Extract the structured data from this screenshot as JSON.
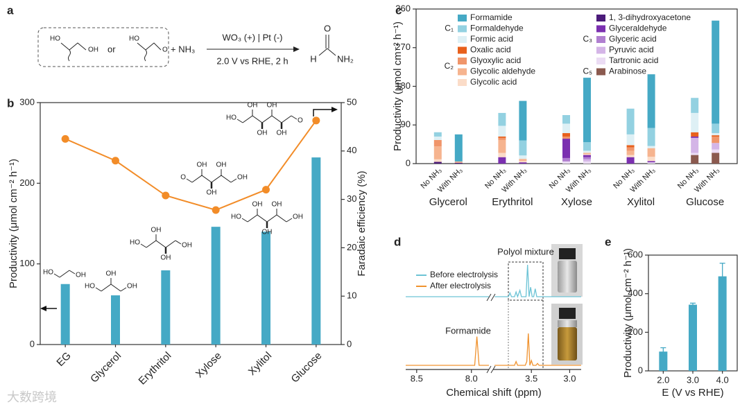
{
  "panel_labels": [
    "a",
    "b",
    "c",
    "d",
    "e"
  ],
  "scheme": {
    "reactant_1": [
      "HO",
      "OH"
    ],
    "or": "or",
    "reactant_2": [
      "HO",
      "O"
    ],
    "plus": "+ NH₃",
    "condition_top": "WO₃ (+) | Pt (-)",
    "condition_bottom": "2.0 V vs RHE, 2 h",
    "product": [
      "O",
      "H",
      "NH₂"
    ]
  },
  "watermark": "大数跨境",
  "chart_data": [
    {
      "type": "combo",
      "categories": [
        "EG",
        "Glycerol",
        "Erythritol",
        "Xylose",
        "Xylitol",
        "Glucose"
      ],
      "ylabel": "Productivity (μmol cm⁻² h⁻¹)",
      "y2label": "Faradaic efficiency (%)",
      "ylim": [
        0,
        300
      ],
      "yticks": [
        0,
        100,
        200,
        300
      ],
      "y2lim": [
        0,
        50
      ],
      "y2ticks": [
        0,
        10,
        20,
        30,
        40,
        50
      ],
      "series": [
        {
          "type": "bar",
          "color": "#45a9c5",
          "values": [
            75,
            61,
            92,
            146,
            140,
            232
          ]
        },
        {
          "type": "line",
          "axis": "y2",
          "color": "#f28c28",
          "values": [
            42.5,
            38,
            30.8,
            27.8,
            32,
            46.3
          ]
        }
      ],
      "structures": [
        {
          "labels": [
            "HO",
            "OH"
          ]
        },
        {
          "labels": [
            "HO",
            "OH",
            "OH"
          ]
        },
        {
          "labels": [
            "HO",
            "OH",
            "OH",
            "OH"
          ]
        },
        {
          "labels": [
            "O",
            "OH",
            "OH",
            "OH",
            "OH"
          ]
        },
        {
          "labels": [
            "HO",
            "OH",
            "OH",
            "OH",
            "OH"
          ]
        },
        {
          "labels": [
            "HO",
            "OH",
            "OH",
            "OH",
            "OH",
            "O"
          ]
        }
      ]
    },
    {
      "type": "stacked_bar",
      "categories": [
        "No NH₃",
        "With NH₃",
        "No NH₃",
        "With NH₃",
        "No NH₃",
        "With NH₃",
        "No NH₃",
        "With NH₃",
        "No NH₃",
        "With NH₃"
      ],
      "groups": [
        "Glycerol",
        "Erythritol",
        "Xylose",
        "Xylitol",
        "Glucose"
      ],
      "ylabel": "Productivity (μmol cm⁻² h⁻¹)",
      "ylim": [
        0,
        360
      ],
      "yticks": [
        0,
        90,
        180,
        270,
        360
      ],
      "legend_groups": [
        {
          "label": "C₁",
          "series": [
            {
              "name": "Formamide",
              "color": "#45a9c5",
              "values": [
                0,
                63,
                0,
                92,
                0,
                150,
                0,
                125,
                0,
                240
              ]
            },
            {
              "name": "Formaldehyde",
              "color": "#93d1e1",
              "values": [
                10,
                0,
                30,
                35,
                20,
                20,
                60,
                42,
                35,
                22
              ]
            },
            {
              "name": "Formic acid",
              "color": "#def0f5",
              "values": [
                8,
                0,
                25,
                8,
                22,
                5,
                25,
                5,
                45,
                5
              ]
            }
          ]
        },
        {
          "label": "C₂",
          "series": [
            {
              "name": "Oxalic acid",
              "color": "#e8601c",
              "values": [
                0,
                0,
                3,
                0,
                8,
                0,
                5,
                0,
                10,
                3
              ]
            },
            {
              "name": "Glyoxylic acid",
              "color": "#f0956a",
              "values": [
                15,
                0,
                5,
                0,
                5,
                0,
                8,
                0,
                0,
                15
              ]
            },
            {
              "name": "Glycolic aldehyde",
              "color": "#f6b48f",
              "values": [
                30,
                3,
                30,
                5,
                0,
                3,
                10,
                20,
                0,
                0
              ]
            },
            {
              "name": "Glycolic acid",
              "color": "#fbdcc8",
              "values": [
                6,
                0,
                10,
                3,
                0,
                2,
                5,
                10,
                0,
                0
              ]
            }
          ]
        },
        {
          "label": "C₃",
          "series": [
            {
              "name": "1, 3-dihydroxyacetone",
              "color": "#4b1b7a",
              "values": [
                4,
                2,
                0,
                0,
                0,
                0,
                0,
                0,
                0,
                0
              ]
            },
            {
              "name": "Glyceraldehyde",
              "color": "#7b30b0",
              "values": [
                0,
                0,
                15,
                3,
                45,
                5,
                15,
                3,
                3,
                0
              ]
            },
            {
              "name": "Glyceric acid",
              "color": "#b07fd0",
              "values": [
                0,
                0,
                0,
                0,
                8,
                5,
                0,
                0,
                0,
                0
              ]
            },
            {
              "name": "Pyruvic acid",
              "color": "#d4b5e7",
              "values": [
                0,
                0,
                0,
                0,
                0,
                5,
                0,
                0,
                35,
                15
              ]
            },
            {
              "name": "Tartronic acid",
              "color": "#ebdcf4",
              "values": [
                0,
                0,
                0,
                0,
                5,
                5,
                0,
                3,
                5,
                8
              ]
            }
          ]
        },
        {
          "label": "C₅",
          "series": [
            {
              "name": "Arabinose",
              "color": "#8b5a4f",
              "values": [
                0,
                0,
                0,
                0,
                0,
                0,
                0,
                0,
                20,
                25
              ]
            }
          ]
        }
      ]
    },
    {
      "type": "line",
      "xlabel": "Chemical shift (ppm)",
      "xlim": [
        [
          8.6,
          7.84
        ],
        [
          4.0,
          2.85
        ]
      ],
      "xticks": [
        8.5,
        {
          "value": 8,
          "label": "8.0"
        },
        3.5,
        {
          "value": 3,
          "label": "3.0"
        }
      ],
      "series": [
        {
          "name": "Before electrolysis",
          "color": "#6cc3d5",
          "x": [
            8.6,
            7.84,
            4.0,
            3.98,
            3.8,
            3.78,
            3.76,
            3.72,
            3.7,
            3.68,
            3.65,
            3.63,
            3.61,
            3.57,
            3.55,
            3.53,
            3.51,
            3.49,
            3.47,
            3.45,
            3.43,
            3.4,
            2.85
          ],
          "values": [
            0,
            0,
            null,
            0,
            0,
            0.12,
            0,
            0,
            0.15,
            0,
            0.2,
            0,
            0,
            0,
            1.0,
            0,
            0.3,
            0,
            0,
            0.25,
            0,
            0,
            0
          ]
        },
        {
          "name": "After electrolysis",
          "color": "#f0922e",
          "x": [
            8.6,
            7.97,
            7.95,
            7.93,
            7.84,
            4.0,
            3.98,
            3.72,
            3.7,
            3.68,
            3.58,
            3.56,
            3.54,
            3.52,
            3.5,
            3.48,
            3.44,
            3.42,
            3.4,
            2.85
          ],
          "values": [
            0,
            0,
            0.9,
            0,
            0,
            null,
            0,
            0,
            0.12,
            0,
            0,
            0.12,
            1.0,
            0,
            0.15,
            0,
            0,
            0.06,
            0,
            0
          ]
        }
      ],
      "annotations": [
        {
          "text": "Polyol mixture"
        },
        {
          "text": "Formamide"
        }
      ]
    },
    {
      "type": "bar",
      "categories": [
        "2.0",
        "3.0",
        "4.0"
      ],
      "values": [
        100,
        343,
        490
      ],
      "errors": [
        20,
        8,
        68
      ],
      "color": "#45a9c5",
      "ylim": [
        0,
        600
      ],
      "yticks": [
        0,
        200,
        400,
        600
      ],
      "xlabel": "E (V vs RHE)",
      "ylabel": "Productivity (μmol cm⁻² h⁻¹)"
    }
  ]
}
